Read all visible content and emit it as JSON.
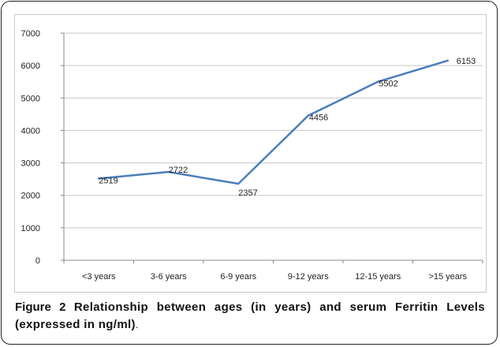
{
  "chart_data": {
    "type": "line",
    "categories": [
      "<3 years",
      "3-6 years",
      "6-9 years",
      "9-12 years",
      "12-15 years",
      ">15 years"
    ],
    "series": [
      {
        "values": [
          2519,
          2722,
          2357,
          4456,
          5502,
          6153
        ],
        "color": "#4a7ebb"
      }
    ],
    "data_labels": [
      "2519",
      "2722",
      "2357",
      "4456",
      "5502",
      "6153"
    ],
    "ylim": [
      0,
      7000
    ],
    "yticks": [
      0,
      1000,
      2000,
      3000,
      4000,
      5000,
      6000,
      7000
    ],
    "grid": true,
    "gridline_color": "#c8c8c8",
    "axis_color": "#888888"
  },
  "caption": {
    "label": "Figure 2",
    "text": "Relationship between ages (in years) and serum Ferritin Levels (expressed in ng/ml)",
    "end": "."
  }
}
